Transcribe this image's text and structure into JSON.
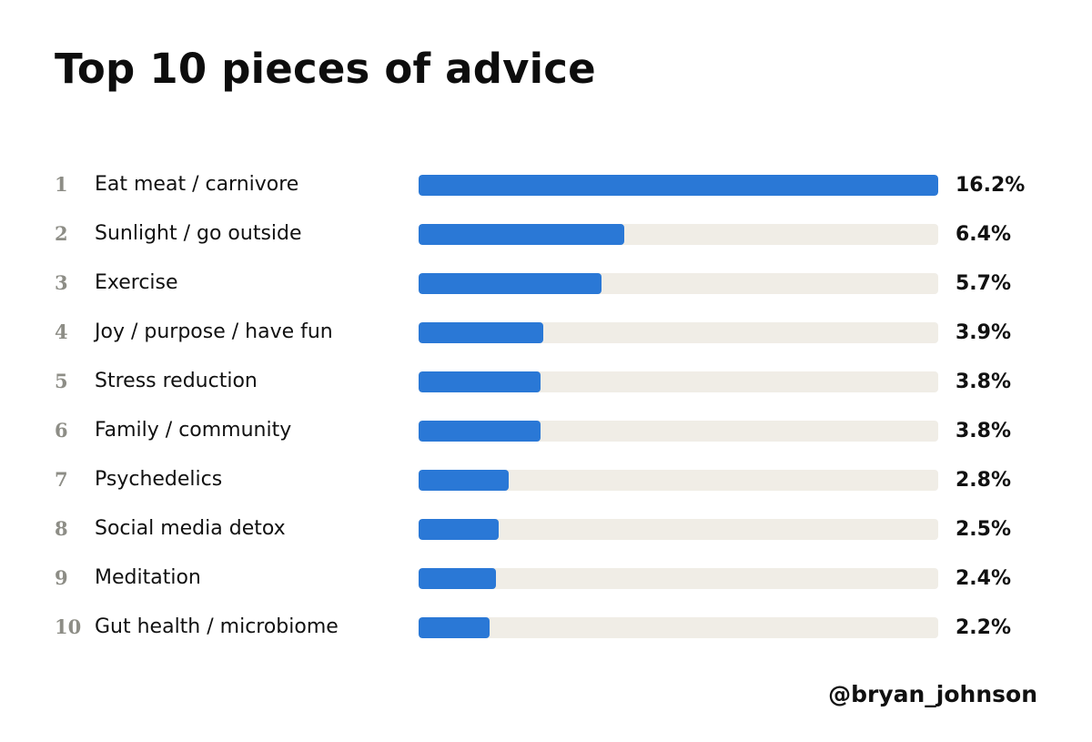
{
  "title": "Top 10 pieces of advice",
  "handle": "@bryan_johnson",
  "colors": {
    "bar": "#2a78d6",
    "track": "#f0ede6",
    "rank": "#8d8d86",
    "text": "#111111"
  },
  "chart_data": {
    "type": "bar",
    "orientation": "horizontal",
    "title": "Top 10 pieces of advice",
    "xlim": [
      0,
      16.2
    ],
    "categories": [
      "Eat meat / carnivore",
      "Sunlight / go outside",
      "Exercise",
      "Joy / purpose / have fun",
      "Stress reduction",
      "Family / community",
      "Psychedelics",
      "Social media detox",
      "Meditation",
      "Gut health / microbiome"
    ],
    "ranks": [
      "1",
      "2",
      "3",
      "4",
      "5",
      "6",
      "7",
      "8",
      "9",
      "10"
    ],
    "values": [
      16.2,
      6.4,
      5.7,
      3.9,
      3.8,
      3.8,
      2.8,
      2.5,
      2.4,
      2.2
    ],
    "value_labels": [
      "16.2%",
      "6.4%",
      "5.7%",
      "3.9%",
      "3.8%",
      "3.8%",
      "2.8%",
      "2.5%",
      "2.4%",
      "2.2%"
    ]
  }
}
